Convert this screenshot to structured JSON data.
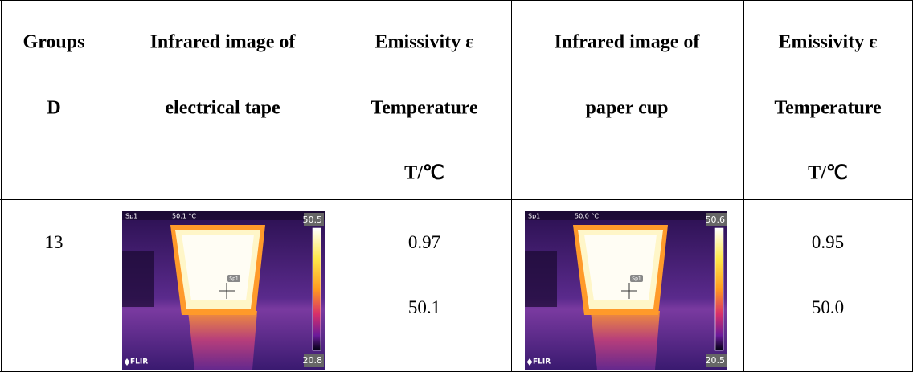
{
  "table": {
    "header": [
      [
        "Groups",
        "D"
      ],
      [
        "Infrared image of",
        "electrical tape"
      ],
      [
        "Emissivity ε",
        "Temperature",
        "T/℃"
      ],
      [
        "Infrared image of",
        "paper cup"
      ],
      [
        "Emissivity ε",
        "Temperature",
        "T/℃"
      ]
    ],
    "rows": [
      {
        "group": "13",
        "tape_image": {
          "spot_label": "Sp1",
          "spot_reading": "50.1 °C",
          "scale_max": "50.5",
          "scale_min": "20.8",
          "brand": "FLIR",
          "marker_label": "Sp1"
        },
        "tape_values": [
          "0.97",
          "50.1"
        ],
        "cup_image": {
          "spot_label": "Sp1",
          "spot_reading": "50.0 °C",
          "scale_max": "50.6",
          "scale_min": "20.5",
          "brand": "FLIR",
          "marker_label": "Sp1"
        },
        "cup_values": [
          "0.95",
          "50.0"
        ]
      }
    ]
  }
}
